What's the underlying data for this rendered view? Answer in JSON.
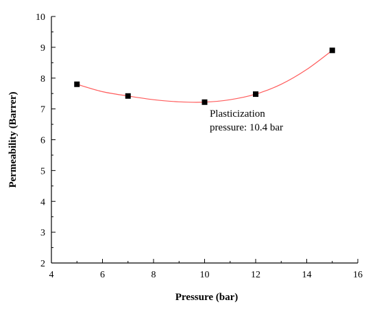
{
  "chart_data": {
    "type": "scatter",
    "title": "",
    "xlabel": "Pressure (bar)",
    "ylabel": "Permeability (Barrer)",
    "xlim": [
      4,
      16
    ],
    "ylim": [
      2,
      10
    ],
    "xticks": [
      4,
      6,
      8,
      10,
      12,
      14,
      16
    ],
    "yticks": [
      2,
      3,
      4,
      5,
      6,
      7,
      8,
      9,
      10
    ],
    "x_minor_step": 1,
    "y_minor_step": 0.5,
    "grid": false,
    "legend": "none",
    "series": [
      {
        "points": [
          {
            "x": 5,
            "y": 7.8
          },
          {
            "x": 7,
            "y": 7.42
          },
          {
            "x": 10,
            "y": 7.22
          },
          {
            "x": 12,
            "y": 7.48
          },
          {
            "x": 15,
            "y": 8.9
          }
        ],
        "marker": "square",
        "marker_color": "#000000"
      }
    ],
    "fit_curve": {
      "x_range": [
        5,
        15
      ],
      "points": [
        {
          "x": 5,
          "y": 7.8
        },
        {
          "x": 6,
          "y": 7.56
        },
        {
          "x": 7,
          "y": 7.42
        },
        {
          "x": 8,
          "y": 7.3
        },
        {
          "x": 9,
          "y": 7.23
        },
        {
          "x": 10,
          "y": 7.22
        },
        {
          "x": 11,
          "y": 7.3
        },
        {
          "x": 12,
          "y": 7.48
        },
        {
          "x": 13,
          "y": 7.8
        },
        {
          "x": 14,
          "y": 8.28
        },
        {
          "x": 15,
          "y": 8.9
        }
      ],
      "color": "#ff5a5a"
    },
    "annotations": [
      {
        "line1": "Plasticization",
        "line2": "pressure: 10.4 bar",
        "x": 10.2,
        "y": 6.75
      }
    ]
  }
}
